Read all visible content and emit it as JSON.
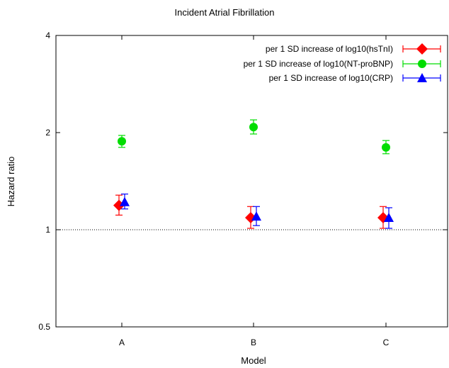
{
  "chart_data": {
    "type": "scatter",
    "title": "Incident Atrial Fibrillation",
    "xlabel": "Model",
    "ylabel": "Hazard ratio",
    "categories": [
      "A",
      "B",
      "C"
    ],
    "y_scale": "log",
    "ylim": [
      0.5,
      4
    ],
    "yticks": [
      0.5,
      1,
      2,
      4
    ],
    "ytick_labels": [
      "0.5",
      "1",
      "2",
      "4"
    ],
    "reference_line": 1,
    "grid": false,
    "legend_position": "top-right",
    "series": [
      {
        "name": "per 1 SD increase of log10(hsTnI)",
        "color": "#ff0000",
        "marker": "diamond",
        "values": [
          1.19,
          1.09,
          1.09
        ],
        "lower": [
          1.11,
          1.01,
          1.01
        ],
        "upper": [
          1.28,
          1.18,
          1.18
        ]
      },
      {
        "name": "per 1 SD increase of log10(NT-proBNP)",
        "color": "#00dd00",
        "marker": "circle",
        "values": [
          1.88,
          2.08,
          1.8
        ],
        "lower": [
          1.8,
          1.98,
          1.72
        ],
        "upper": [
          1.96,
          2.19,
          1.89
        ]
      },
      {
        "name": "per  1 SD increase of log10(CRP)",
        "color": "#0000ff",
        "marker": "triangle",
        "values": [
          1.22,
          1.1,
          1.09
        ],
        "lower": [
          1.16,
          1.03,
          1.01
        ],
        "upper": [
          1.29,
          1.18,
          1.17
        ]
      }
    ]
  }
}
